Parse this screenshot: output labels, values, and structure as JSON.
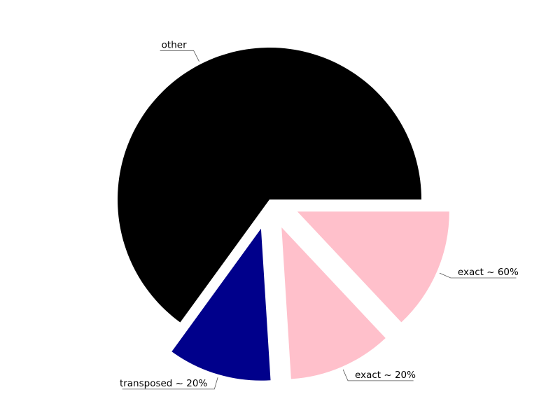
{
  "chart_data": {
    "type": "pie",
    "title": "",
    "slices": [
      {
        "label": "other",
        "value": 65,
        "color": "#000000",
        "explode": false
      },
      {
        "label": "transposed ~ 20%",
        "value": 11,
        "color": "#00008b",
        "explode": true
      },
      {
        "label": "exact ~ 20%",
        "value": 11,
        "color": "#ffc0cb",
        "explode": true
      },
      {
        "label": "exact ~ 60%",
        "value": 13,
        "color": "#ffc0cb",
        "explode": true
      }
    ],
    "legend": "none"
  }
}
